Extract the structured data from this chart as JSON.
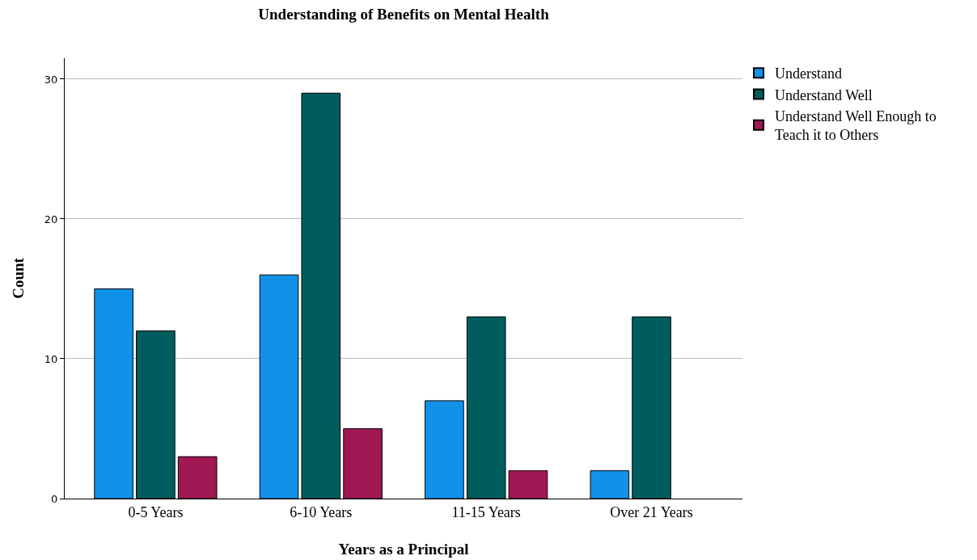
{
  "chart_data": {
    "type": "bar",
    "title": "Understanding of Benefits on Mental Health",
    "xlabel": "Years as a Principal",
    "ylabel": "Count",
    "categories": [
      "0-5 Years",
      "6-10 Years",
      "11-15 Years",
      "Over 21 Years"
    ],
    "series": [
      {
        "name": "Understand",
        "color": "#1192e8",
        "values": [
          15,
          16,
          7,
          2
        ]
      },
      {
        "name": "Understand Well",
        "color": "#005d5d",
        "values": [
          12,
          29,
          13,
          13
        ]
      },
      {
        "name": "Understand Well Enough to Teach it to Others",
        "color": "#9f1853",
        "values": [
          3,
          5,
          2,
          null
        ]
      }
    ],
    "ylim": [
      0,
      31.5
    ],
    "yticks": [
      0,
      10,
      20,
      30
    ],
    "grid": "y",
    "legend": "top right"
  }
}
